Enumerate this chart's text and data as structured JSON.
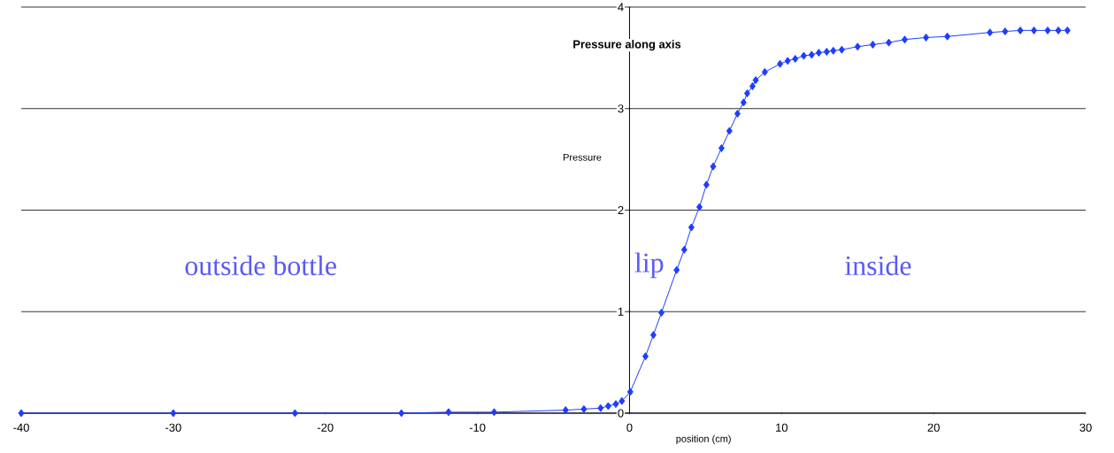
{
  "chart_data": {
    "type": "line",
    "title": "Pressure along axis",
    "xlabel": "position (cm)",
    "ylabel": "Pressure",
    "x": [
      -40,
      -30,
      -22,
      -15,
      -11.9,
      -8.9,
      -4.2,
      -3.0,
      -1.9,
      -1.4,
      -0.9,
      -0.5,
      0.05,
      1.05,
      1.57,
      2.1,
      3.1,
      3.6,
      4.07,
      4.6,
      5.06,
      5.5,
      6.05,
      6.57,
      7.1,
      7.5,
      7.74,
      8.09,
      8.3,
      8.9,
      9.9,
      10.4,
      10.9,
      11.46,
      11.98,
      12.45,
      12.97,
      13.4,
      13.96,
      15.0,
      16.0,
      17.05,
      18.1,
      19.5,
      20.9,
      23.7,
      24.7,
      25.7,
      26.6,
      27.5,
      28.2,
      28.8
    ],
    "series": [
      {
        "color": "#1f3dff",
        "values": [
          0,
          0,
          0,
          0,
          0.01,
          0.01,
          0.03,
          0.04,
          0.05,
          0.07,
          0.09,
          0.12,
          0.21,
          0.56,
          0.77,
          0.99,
          1.41,
          1.61,
          1.83,
          2.03,
          2.25,
          2.43,
          2.61,
          2.78,
          2.95,
          3.06,
          3.15,
          3.22,
          3.28,
          3.36,
          3.44,
          3.47,
          3.49,
          3.52,
          3.53,
          3.55,
          3.56,
          3.57,
          3.58,
          3.61,
          3.63,
          3.65,
          3.68,
          3.7,
          3.71,
          3.75,
          3.76,
          3.77,
          3.77,
          3.77,
          3.77,
          3.77
        ]
      }
    ],
    "xlim": [
      -40,
      30
    ],
    "ylim": [
      0,
      4
    ],
    "xticks": [
      -40,
      -30,
      -20,
      -10,
      0,
      10,
      20,
      30
    ],
    "yticks": [
      0,
      1,
      2,
      3,
      4
    ],
    "grid": "y",
    "marker": "diamond",
    "line_style": "solid",
    "annotations": [
      "outside bottle",
      "lip",
      "inside"
    ]
  }
}
